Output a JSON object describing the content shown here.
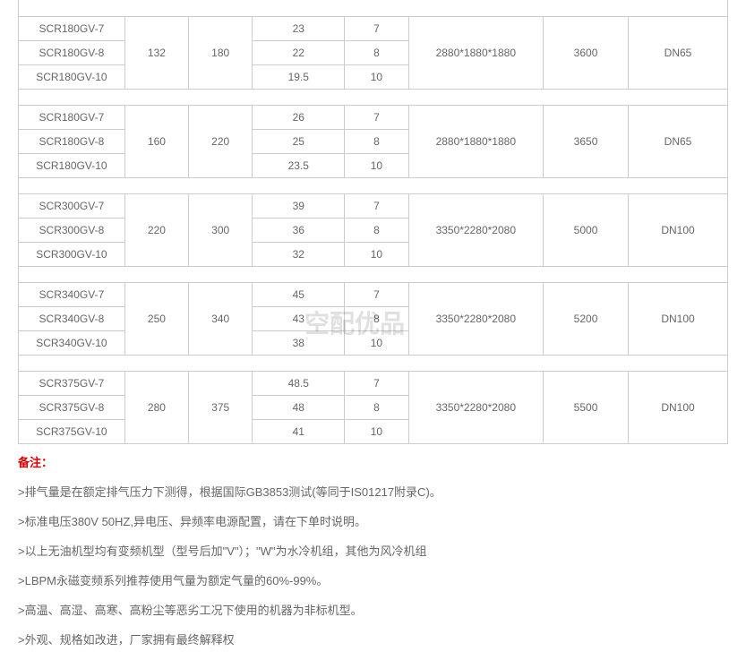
{
  "watermark": "空配优品",
  "groups": [
    {
      "models": [
        "SCR180GV-7",
        "SCR180GV-8",
        "SCR180GV-10"
      ],
      "c2": "132",
      "c3": "180",
      "c4": [
        "23",
        "22",
        "19.5"
      ],
      "c5": [
        "7",
        "8",
        "10"
      ],
      "c6": "2880*1880*1880",
      "c7": "3600",
      "c8": "DN65"
    },
    {
      "models": [
        "SCR180GV-7",
        "SCR180GV-8",
        "SCR180GV-10"
      ],
      "c2": "160",
      "c3": "220",
      "c4": [
        "26",
        "25",
        "23.5"
      ],
      "c5": [
        "7",
        "8",
        "10"
      ],
      "c6": "2880*1880*1880",
      "c7": "3650",
      "c8": "DN65"
    },
    {
      "models": [
        "SCR300GV-7",
        "SCR300GV-8",
        "SCR300GV-10"
      ],
      "c2": "220",
      "c3": "300",
      "c4": [
        "39",
        "36",
        "32"
      ],
      "c5": [
        "7",
        "8",
        "10"
      ],
      "c6": "3350*2280*2080",
      "c7": "5000",
      "c8": "DN100"
    },
    {
      "models": [
        "SCR340GV-7",
        "SCR340GV-8",
        "SCR340GV-10"
      ],
      "c2": "250",
      "c3": "340",
      "c4": [
        "45",
        "43",
        "38"
      ],
      "c5": [
        "7",
        "8",
        "10"
      ],
      "c6": "3350*2280*2080",
      "c7": "5200",
      "c8": "DN100"
    },
    {
      "models": [
        "SCR375GV-7",
        "SCR375GV-8",
        "SCR375GV-10"
      ],
      "c2": "280",
      "c3": "375",
      "c4": [
        "48.5",
        "48",
        "41"
      ],
      "c5": [
        "7",
        "8",
        "10"
      ],
      "c6": "3350*2280*2080",
      "c7": "5500",
      "c8": "DN100"
    }
  ],
  "colwidths": [
    "15%",
    "9%",
    "9%",
    "13%",
    "9%",
    "19%",
    "12%",
    "14%"
  ],
  "remarks_title": "备注：",
  "remarks": [
    ">排气量是在额定排气压力下测得，根据国际GB3853测试(等同于IS01217附录C)。",
    ">标准电压380V 50HZ,异电压、异频率电源配置，请在下单时说明。",
    ">以上无油机型均有变频机型（型号后加\"V\"）；\"W\"为水冷机组，其他为风冷机组",
    ">LBPM永磁变频系列推荐使用气量为额定气量的60%-99%。",
    ">高温、高湿、高寒、高粉尘等恶劣工况下使用的机器为非标机型。",
    ">外观、规格如改进，厂家拥有最终解释权"
  ]
}
